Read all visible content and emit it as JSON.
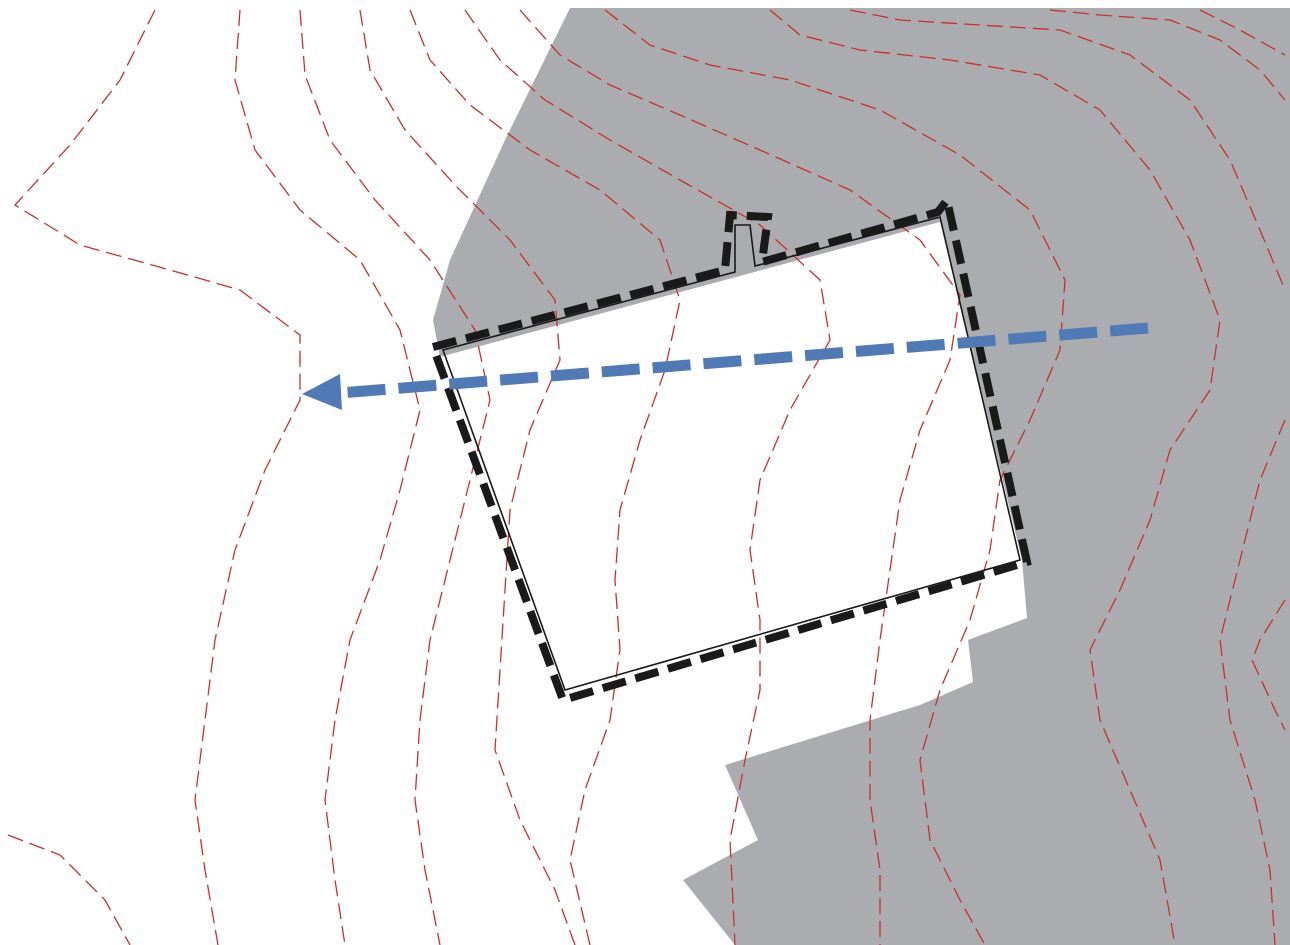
{
  "map": {
    "colors": {
      "background": "#ffffff",
      "shaded_area": "#abacaf",
      "contour_line": "#c8302a",
      "site_boundary": "#1a1a1a",
      "flow_arrow": "#4f7ab5"
    },
    "features": {
      "shaded_area": "shaded-terrain-area",
      "contours": "topographic-contour-lines",
      "site_boundary": "site-boundary-dashed",
      "building_outline": "building-footprint-outline",
      "flow_arrow": "drainage-flow-arrow"
    }
  }
}
